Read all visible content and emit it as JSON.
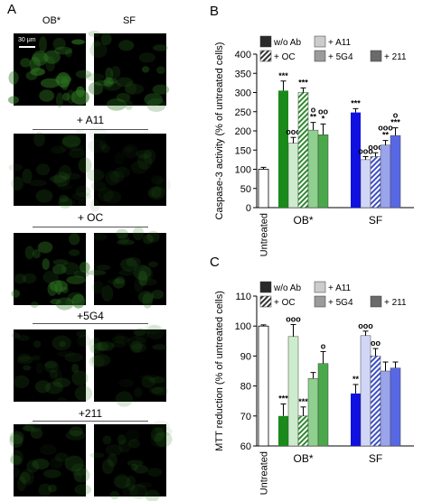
{
  "panel_labels": {
    "a": "A",
    "b": "B",
    "c": "C"
  },
  "panel_a": {
    "column_labels": [
      "OB*",
      "SF"
    ],
    "scale_bar_label": "30 μm",
    "row_labels": [
      "+ A11",
      "+ OC",
      "+5G4",
      "+211"
    ]
  },
  "colors": {
    "untreated": "#ffffff",
    "wo_ab_ob": "#1a8a1a",
    "a11_ob": "#cdeccd",
    "oc_ob": "#2e8b2e",
    "g4_ob": "#8fd08f",
    "a211_ob": "#4aa84a",
    "wo_ab_sf": "#1010e0",
    "a11_sf": "#d2d6f6",
    "oc_sf": "#3d4fc8",
    "g4_sf": "#9aa4ec",
    "a211_sf": "#5868e4",
    "micro_green": "#2f7a22"
  },
  "chart_data": [
    {
      "type": "bar",
      "ylabel": "Caspase-3 activity (% of untreated cells)",
      "ylim": [
        0,
        400
      ],
      "yticks": [
        0,
        50,
        100,
        150,
        200,
        250,
        300,
        350,
        400
      ],
      "group_labels": [
        "Untreated",
        "OB*",
        "SF"
      ],
      "legend": [
        "w/o Ab",
        "+ A11",
        "+ OC",
        "+ 5G4",
        "+ 211"
      ],
      "untreated": {
        "value": 100,
        "error": 5
      },
      "groups": [
        {
          "name": "OB*",
          "values": [
            305,
            168,
            300,
            202,
            190
          ],
          "errors": [
            25,
            15,
            12,
            20,
            28
          ],
          "annotations": [
            "***",
            "ooo",
            "***",
            "o\n**",
            "oo\n*"
          ]
        },
        {
          "name": "SF",
          "values": [
            248,
            125,
            133,
            163,
            188
          ],
          "errors": [
            10,
            8,
            10,
            12,
            20
          ],
          "annotations": [
            "***",
            "ooo",
            "ooo",
            "ooo\n**",
            "o\n***"
          ]
        }
      ]
    },
    {
      "type": "bar",
      "ylabel": "MTT reduction (% of untreated cells)",
      "ylim": [
        60,
        110
      ],
      "yticks": [
        60,
        70,
        80,
        90,
        100,
        110
      ],
      "group_labels": [
        "Untreated",
        "OB*",
        "SF"
      ],
      "legend": [
        "w/o Ab",
        "+ A11",
        "+ OC",
        "+ 5G4",
        "+ 211"
      ],
      "untreated": {
        "value": 100,
        "error": 0.4
      },
      "groups": [
        {
          "name": "OB*",
          "values": [
            70,
            96.5,
            70,
            82.5,
            87.5
          ],
          "errors": [
            4,
            4,
            3,
            2,
            4
          ],
          "annotations": [
            "***",
            "ooo",
            "***",
            "",
            "o"
          ]
        },
        {
          "name": "SF",
          "values": [
            77.5,
            96.8,
            90,
            85,
            86
          ],
          "errors": [
            3,
            1.5,
            2.5,
            3,
            2
          ],
          "annotations": [
            "**",
            "ooo",
            "oo",
            "",
            ""
          ]
        }
      ]
    }
  ]
}
